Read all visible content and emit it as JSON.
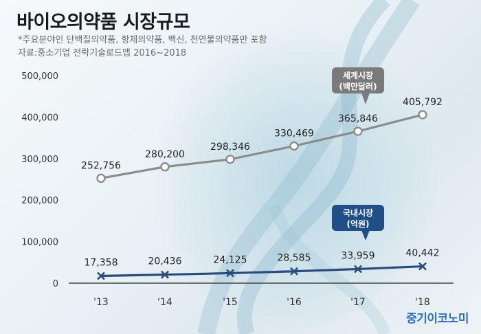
{
  "header": {
    "title": "바이오의약품 시장규모",
    "note_line1": "*주요분야인 단백질의약품, 항체의약품, 백신, 천연물의약품만 포함",
    "note_line2": "자료:중소기업 전략기술로드맵 2016~2018"
  },
  "brand": "중기이코노미",
  "colors": {
    "world_series": "#8c8c8c",
    "world_callout": "#7a7a7a",
    "domestic_series": "#2b4b7c",
    "domestic_callout": "#1f4f86"
  },
  "chart_data": {
    "type": "line",
    "title": "바이오의약품 시장규모",
    "categories": [
      "'13",
      "'14",
      "'15",
      "'16",
      "'17",
      "'18"
    ],
    "ylim": [
      0,
      500000
    ],
    "yticks": [
      0,
      100000,
      200000,
      300000,
      400000,
      500000
    ],
    "ytick_labels": [
      "0",
      "100,000",
      "200,000",
      "300,000",
      "400,000",
      "500,000"
    ],
    "grid": false,
    "series": [
      {
        "name": "세계시장 (백만달러)",
        "callout_line1": "세계시장",
        "callout_line2": "(백만달러)",
        "values": [
          252756,
          280200,
          298346,
          330469,
          365846,
          405792
        ],
        "labels": [
          "252,756",
          "280,200",
          "298,346",
          "330,469",
          "365,846",
          "405,792"
        ],
        "marker": "circle"
      },
      {
        "name": "국내시장 (억원)",
        "callout_line1": "국내시장",
        "callout_line2": "(억원)",
        "values": [
          17358,
          20436,
          24125,
          28585,
          33959,
          40442
        ],
        "labels": [
          "17,358",
          "20,436",
          "24,125",
          "28,585",
          "33,959",
          "40,442"
        ],
        "marker": "x"
      }
    ]
  }
}
